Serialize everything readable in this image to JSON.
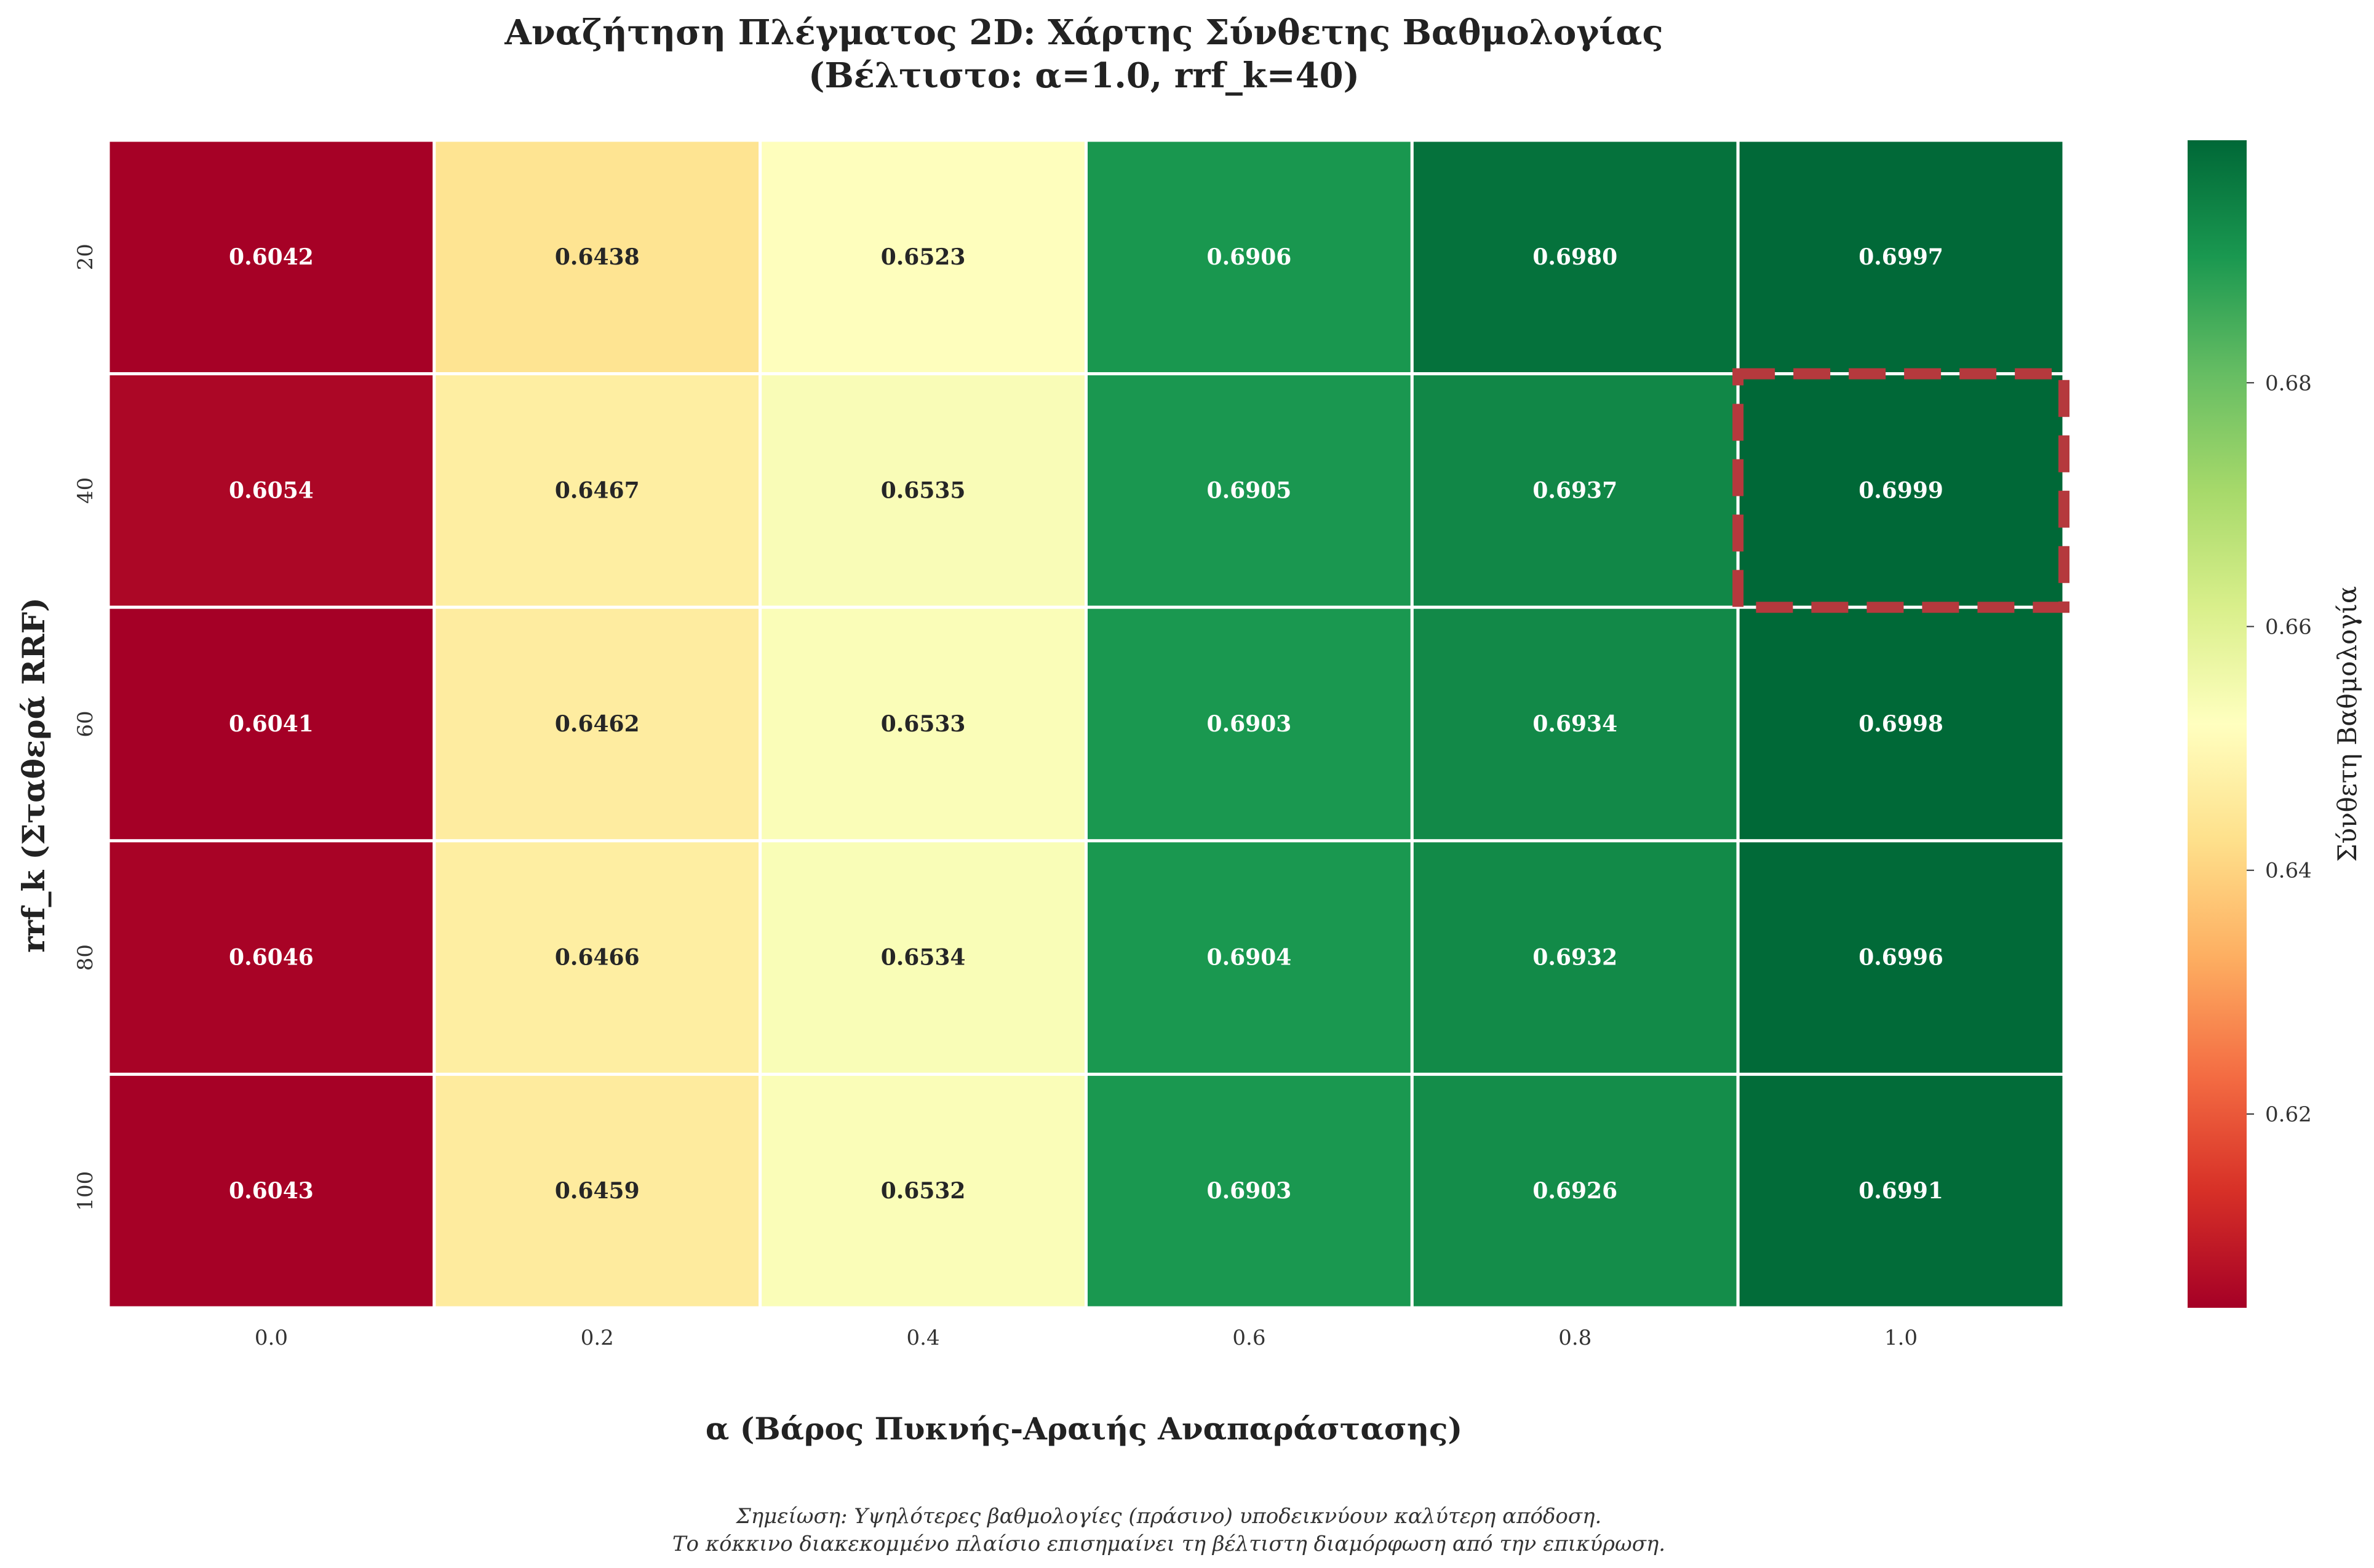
{
  "chart_data": {
    "type": "heatmap",
    "title_line1": "Αναζήτηση Πλέγματος 2D: Χάρτης Σύνθετης Βαθμολογίας",
    "title_line2": "(Βέλτιστο: α=1.0, rrf_k=40)",
    "xlabel": "α (Βάρος Πυκνής-Αραιής Αναπαράστασης)",
    "ylabel": "rrf_k (Σταθερά RRF)",
    "colorbar_label": "Σύνθετη Βαθμολογία",
    "x_categories": [
      "0.0",
      "0.2",
      "0.4",
      "0.6",
      "0.8",
      "1.0"
    ],
    "y_categories": [
      "20",
      "40",
      "60",
      "80",
      "100"
    ],
    "values": [
      [
        0.6042,
        0.6438,
        0.6523,
        0.6906,
        0.698,
        0.6997
      ],
      [
        0.6054,
        0.6467,
        0.6535,
        0.6905,
        0.6937,
        0.6999
      ],
      [
        0.6041,
        0.6462,
        0.6533,
        0.6903,
        0.6934,
        0.6998
      ],
      [
        0.6046,
        0.6466,
        0.6534,
        0.6904,
        0.6932,
        0.6996
      ],
      [
        0.6043,
        0.6459,
        0.6532,
        0.6903,
        0.6926,
        0.6991
      ]
    ],
    "color_range": [
      0.6041,
      0.6999
    ],
    "colormap": "RdYlGn",
    "colorbar_ticks": [
      0.62,
      0.64,
      0.66,
      0.68
    ],
    "best": {
      "alpha": "1.0",
      "rrf_k": "40"
    },
    "highlight_color": "#b5393d",
    "note_line1": "Σημείωση: Υψηλότερες βαθμολογίες (πράσινο) υποδεικνύουν καλύτερη απόδοση.",
    "note_line2": "Το κόκκινο διακεκομμένο πλαίσιο επισημαίνει τη βέλτιστη διαμόρφωση από την επικύρωση."
  }
}
